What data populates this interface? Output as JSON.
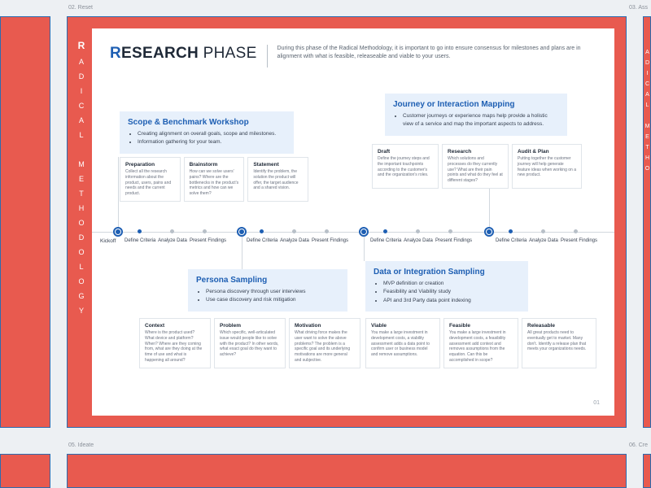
{
  "canvas": {
    "bg": "#edf0f3"
  },
  "labels": {
    "top_left": "02. Reset",
    "top_right": "03. Ass",
    "bottom_left": "05. Ideate",
    "bottom_right": "06. Cre"
  },
  "main": {
    "vertical_brand": {
      "pre": "R",
      "rest": "ADICAL METHODOLOGY"
    },
    "title": {
      "r": "R",
      "bold": "ESEARCH",
      "light": " PHASE"
    },
    "description": "During this phase of the Radical Methodology, it is important to go into ensure consensus for milestones and plans are in alignment with what is feasible, releaseable and viable to your users.",
    "page_number": "01"
  },
  "neighbor_right": {
    "vertical": "ADICAL METHO"
  },
  "timeline": {
    "kickoff": "Kickoff",
    "nodes": [
      26,
      178,
      328,
      482
    ],
    "groups": [
      {
        "start": 56,
        "ticks": [
          "Define Criteria",
          "Analyze Data",
          "Present Findings"
        ]
      },
      {
        "start": 206,
        "ticks": [
          "Define Criteria",
          "Analyze Data",
          "Present Findings"
        ]
      },
      {
        "start": 358,
        "ticks": [
          "Define Criteria",
          "Analyze Data",
          "Present Findings"
        ]
      },
      {
        "start": 512,
        "ticks": [
          "Define Criteria",
          "Analyze Data",
          "Present Findings"
        ]
      }
    ]
  },
  "callouts": {
    "scope": {
      "title": "Scope & Benchmark Workshop",
      "bullets": [
        "Creating alignment on overall goals, scope and milestones.",
        "Information gathering for your team."
      ],
      "details": [
        {
          "h": "Preparation",
          "p": "Collect all the research information about the product, users, pains and needs and the current product."
        },
        {
          "h": "Brainstorm",
          "p": "How can we solve users' pains? Where are the bottlenecks in the product's metrics and how can we solve them?"
        },
        {
          "h": "Statement",
          "p": "Identify the problem, the solution the product will offer, the target audience and a shared vision."
        }
      ]
    },
    "persona": {
      "title": "Persona Sampling",
      "bullets": [
        "Persona discovery through user interviews",
        "Use case discovery and risk mitigation"
      ],
      "details": [
        {
          "h": "Context",
          "p": "Where is the product used? What device and platform? When? Where are they coming from, what are they doing at the time of use and what is happening all around?"
        },
        {
          "h": "Problem",
          "p": "Which specific, well-articulated issue would people like to solve with the product? In other words, what exact goal do they want to achieve?"
        },
        {
          "h": "Motivation",
          "p": "What driving force makes the user want to solve the above problems? The problem is a specific goal and its underlying motivations are more general and subjective."
        }
      ]
    },
    "journey": {
      "title": "Journey or Interaction Mapping",
      "bullets": [
        "Customer journeys or experience maps help provide a holistic view of a service and map the important aspects to address."
      ],
      "details": [
        {
          "h": "Draft",
          "p": "Define the journey steps and the important touchpoints according to the customer's and the organization's roles."
        },
        {
          "h": "Research",
          "p": "Which solutions and processes do they currently use? What are their pain points and what do they feel at different stages?"
        },
        {
          "h": "Audit & Plan",
          "p": "Putting together the customer journey will help generate feature ideas when working on a new product."
        }
      ]
    },
    "data": {
      "title": "Data or Integration Sampling",
      "bullets": [
        "MVP definition or creation",
        "Feasibility and Viability study",
        "API and 3rd Party data point indexing"
      ],
      "details": [
        {
          "h": "Viable",
          "p": "You make a large investment in development costs, a viability assessment adds a data point to confirm user or business model and remove assumptions."
        },
        {
          "h": "Feasible",
          "p": "You make a large investment in development costs, a feasibility assessment add context and removes assumptions from the equation. Can this be accomplished in scope?"
        },
        {
          "h": "Releasable",
          "p": "All great products need to eventually get to market. Many don't. Identify a release plan that meets your organizations needs."
        }
      ]
    }
  }
}
